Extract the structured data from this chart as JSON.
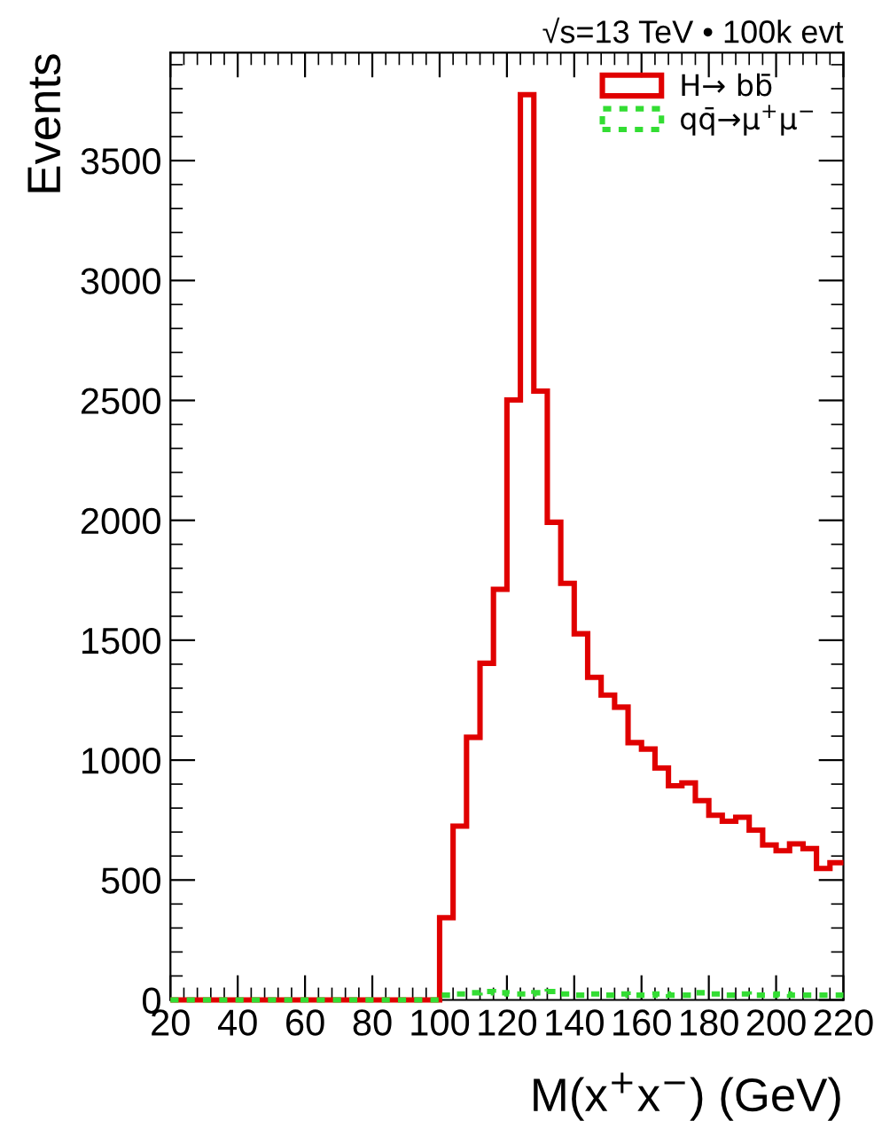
{
  "chart_data": {
    "type": "histogram",
    "title": "√s=13 TeV • 100k evt",
    "xlabel": "M(x$^{+}$x$^{−}$) (GeV)",
    "ylabel": "Events",
    "bins": [
      20,
      24,
      28,
      32,
      36,
      40,
      44,
      48,
      52,
      56,
      60,
      64,
      68,
      72,
      76,
      80,
      84,
      88,
      92,
      96,
      100,
      104,
      108,
      112,
      116,
      120,
      124,
      128,
      132,
      136,
      140,
      144,
      148,
      152,
      156,
      160,
      164,
      168,
      172,
      176,
      180,
      184,
      188,
      192,
      196,
      200,
      204,
      208,
      212,
      216,
      220
    ],
    "series": [
      {
        "name": "H→ bb̄",
        "color": "#e00000",
        "line_style": "solid",
        "values": [
          0,
          0,
          0,
          0,
          0,
          0,
          0,
          0,
          0,
          0,
          0,
          0,
          0,
          0,
          0,
          0,
          0,
          0,
          0,
          0,
          343,
          725,
          1095,
          1404,
          1712,
          2502,
          3775,
          2539,
          1992,
          1737,
          1527,
          1345,
          1271,
          1221,
          1073,
          1046,
          967,
          893,
          905,
          831,
          770,
          745,
          762,
          708,
          646,
          622,
          651,
          631,
          548,
          572
        ]
      },
      {
        "name": "qq̄→μ$^{+}$μ$^{−}$",
        "color": "#33dd33",
        "line_style": "dotted",
        "values": [
          0,
          0,
          0,
          0,
          0,
          0,
          0,
          0,
          0,
          0,
          0,
          0,
          0,
          0,
          0,
          0,
          0,
          0,
          0,
          0,
          20,
          25,
          30,
          35,
          30,
          25,
          25,
          30,
          35,
          25,
          20,
          25,
          20,
          25,
          20,
          20,
          25,
          20,
          20,
          30,
          25,
          20,
          25,
          20,
          20,
          25,
          20,
          20,
          20,
          20
        ]
      }
    ],
    "xlim": [
      20,
      220
    ],
    "xticks": [
      20,
      40,
      60,
      80,
      100,
      120,
      140,
      160,
      180,
      200,
      220
    ],
    "ylim": [
      0,
      3950
    ],
    "yticks": [
      0,
      500,
      1000,
      1500,
      2000,
      2500,
      3000,
      3500
    ],
    "legend": "top right",
    "grid": false
  }
}
